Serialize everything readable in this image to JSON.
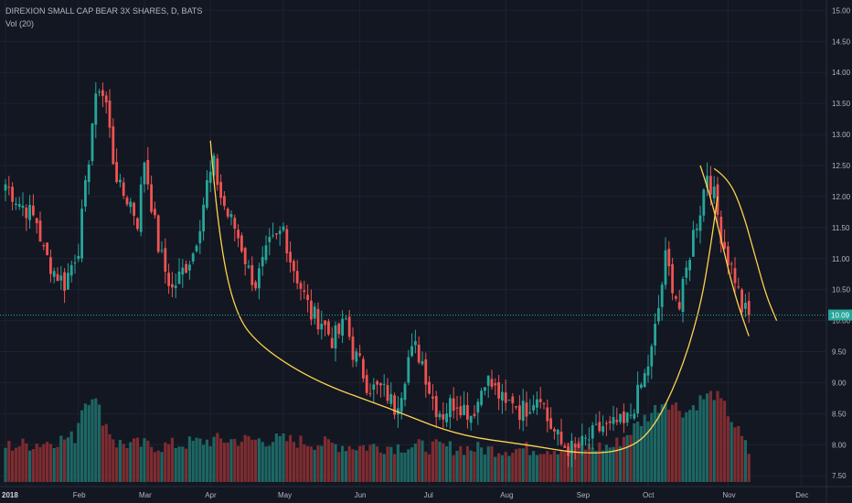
{
  "header": {
    "symbol_line": "DIREXION SMALL CAP BEAR 3X SHARES, D, BATS",
    "volume_line": "Vol (20)"
  },
  "colors": {
    "background": "#131722",
    "grid": "#1e2230",
    "up": "#26a69a",
    "down": "#ef5350",
    "volume_up": "#1f6f6a",
    "volume_down": "#8b2f32",
    "drawing": "#ffd34d",
    "last_price_line": "#26a69a",
    "price_tag": "#26a69a"
  },
  "price_axis": {
    "ticks": [
      "7.50",
      "8.00",
      "8.50",
      "9.00",
      "9.50",
      "10.00",
      "10.50",
      "11.00",
      "11.50",
      "12.00",
      "12.50",
      "13.00",
      "13.50",
      "14.00",
      "14.50",
      "15.00"
    ],
    "last_price_label": "10.09"
  },
  "time_axis": {
    "labels": [
      {
        "text": "2018",
        "bold": true
      },
      {
        "text": "Feb",
        "bold": false
      },
      {
        "text": "Mar",
        "bold": false
      },
      {
        "text": "Apr",
        "bold": false
      },
      {
        "text": "May",
        "bold": false
      },
      {
        "text": "Jun",
        "bold": false
      },
      {
        "text": "Jul",
        "bold": false
      },
      {
        "text": "Aug",
        "bold": false
      },
      {
        "text": "Sep",
        "bold": false
      },
      {
        "text": "Oct",
        "bold": false
      },
      {
        "text": "Nov",
        "bold": false
      },
      {
        "text": "Dec",
        "bold": false
      }
    ]
  },
  "chart_data": {
    "type": "candlestick",
    "title": "DIREXION SMALL CAP BEAR 3X SHARES, D, BATS",
    "ylim": [
      7.4,
      15.05
    ],
    "last_price": 10.09,
    "grid": true,
    "month_bar_index": [
      0,
      21,
      40,
      59,
      80,
      102,
      122,
      144,
      166,
      185,
      208,
      229
    ],
    "close_anchors": [
      [
        0,
        12.2
      ],
      [
        4,
        11.9
      ],
      [
        6,
        11.8
      ],
      [
        9,
        11.6
      ],
      [
        11,
        11.1
      ],
      [
        14,
        10.8
      ],
      [
        17,
        10.6
      ],
      [
        19,
        10.9
      ],
      [
        21,
        11.2
      ],
      [
        23,
        12.1
      ],
      [
        25,
        13.2
      ],
      [
        27,
        13.8
      ],
      [
        29,
        13.5
      ],
      [
        31,
        12.6
      ],
      [
        33,
        12.1
      ],
      [
        36,
        11.9
      ],
      [
        38,
        11.6
      ],
      [
        40,
        12.6
      ],
      [
        42,
        11.9
      ],
      [
        44,
        11.2
      ],
      [
        46,
        10.8
      ],
      [
        48,
        10.5
      ],
      [
        50,
        10.7
      ],
      [
        52,
        10.9
      ],
      [
        54,
        11.1
      ],
      [
        56,
        11.6
      ],
      [
        58,
        12.2
      ],
      [
        60,
        12.5
      ],
      [
        62,
        12.0
      ],
      [
        64,
        11.7
      ],
      [
        66,
        11.5
      ],
      [
        68,
        11.2
      ],
      [
        70,
        10.8
      ],
      [
        72,
        10.6
      ],
      [
        74,
        10.9
      ],
      [
        76,
        11.2
      ],
      [
        78,
        11.3
      ],
      [
        80,
        11.5
      ],
      [
        82,
        11.0
      ],
      [
        84,
        10.7
      ],
      [
        86,
        10.4
      ],
      [
        88,
        10.1
      ],
      [
        91,
        10.0
      ],
      [
        94,
        9.7
      ],
      [
        96,
        9.8
      ],
      [
        98,
        10.0
      ],
      [
        100,
        9.5
      ],
      [
        102,
        9.3
      ],
      [
        104,
        9.0
      ],
      [
        106,
        8.9
      ],
      [
        108,
        8.9
      ],
      [
        110,
        8.8
      ],
      [
        112,
        8.6
      ],
      [
        114,
        8.9
      ],
      [
        116,
        9.4
      ],
      [
        118,
        9.55
      ],
      [
        120,
        9.35
      ],
      [
        122,
        8.9
      ],
      [
        124,
        8.6
      ],
      [
        126,
        8.5
      ],
      [
        128,
        8.65
      ],
      [
        130,
        8.7
      ],
      [
        132,
        8.6
      ],
      [
        134,
        8.5
      ],
      [
        136,
        8.7
      ],
      [
        138,
        9.1
      ],
      [
        140,
        8.95
      ],
      [
        142,
        8.8
      ],
      [
        144,
        8.6
      ],
      [
        146,
        8.75
      ],
      [
        148,
        8.55
      ],
      [
        150,
        8.6
      ],
      [
        152,
        8.75
      ],
      [
        154,
        8.85
      ],
      [
        156,
        8.4
      ],
      [
        158,
        8.2
      ],
      [
        160,
        8.0
      ],
      [
        162,
        7.95
      ],
      [
        164,
        7.9
      ],
      [
        166,
        8.0
      ],
      [
        168,
        8.1
      ],
      [
        170,
        8.2
      ],
      [
        172,
        8.3
      ],
      [
        174,
        8.25
      ],
      [
        176,
        8.35
      ],
      [
        178,
        8.3
      ],
      [
        180,
        8.5
      ],
      [
        182,
        8.8
      ],
      [
        184,
        9.1
      ],
      [
        186,
        9.5
      ],
      [
        188,
        10.2
      ],
      [
        190,
        11.0
      ],
      [
        192,
        10.6
      ],
      [
        194,
        10.2
      ],
      [
        196,
        10.8
      ],
      [
        198,
        11.4
      ],
      [
        200,
        11.8
      ],
      [
        202,
        12.4
      ],
      [
        204,
        12.0
      ],
      [
        206,
        11.4
      ],
      [
        208,
        11.0
      ],
      [
        210,
        10.7
      ],
      [
        212,
        10.2
      ],
      [
        214,
        10.09
      ]
    ],
    "volume_anchors": [
      [
        0,
        7.95
      ],
      [
        10,
        8.0
      ],
      [
        20,
        8.1
      ],
      [
        22,
        8.6
      ],
      [
        25,
        8.8
      ],
      [
        28,
        8.4
      ],
      [
        32,
        8.0
      ],
      [
        45,
        7.95
      ],
      [
        60,
        8.05
      ],
      [
        80,
        8.05
      ],
      [
        100,
        7.95
      ],
      [
        120,
        7.95
      ],
      [
        140,
        7.9
      ],
      [
        160,
        7.92
      ],
      [
        175,
        7.95
      ],
      [
        182,
        8.3
      ],
      [
        186,
        8.5
      ],
      [
        190,
        8.7
      ],
      [
        196,
        8.5
      ],
      [
        200,
        8.7
      ],
      [
        204,
        8.8
      ],
      [
        208,
        8.5
      ],
      [
        214,
        7.85
      ]
    ],
    "drawings": {
      "curve_1": [
        [
          59,
          12.9
        ],
        [
          61,
          11.5
        ],
        [
          66,
          10.1
        ],
        [
          74,
          9.55
        ],
        [
          90,
          9.0
        ],
        [
          110,
          8.6
        ],
        [
          130,
          8.15
        ],
        [
          150,
          8.0
        ],
        [
          166,
          7.85
        ],
        [
          178,
          7.9
        ],
        [
          186,
          8.2
        ],
        [
          194,
          9.1
        ],
        [
          200,
          10.2
        ],
        [
          203,
          11.2
        ],
        [
          205,
          12.0
        ]
      ],
      "curve_2": [
        [
          200,
          12.5
        ],
        [
          203,
          12.0
        ],
        [
          206,
          11.3
        ],
        [
          210,
          10.4
        ],
        [
          214,
          9.75
        ]
      ],
      "curve_3": [
        [
          204,
          12.45
        ],
        [
          208,
          12.3
        ],
        [
          212,
          11.8
        ],
        [
          216,
          11.0
        ],
        [
          219,
          10.4
        ],
        [
          222,
          10.0
        ]
      ]
    }
  }
}
